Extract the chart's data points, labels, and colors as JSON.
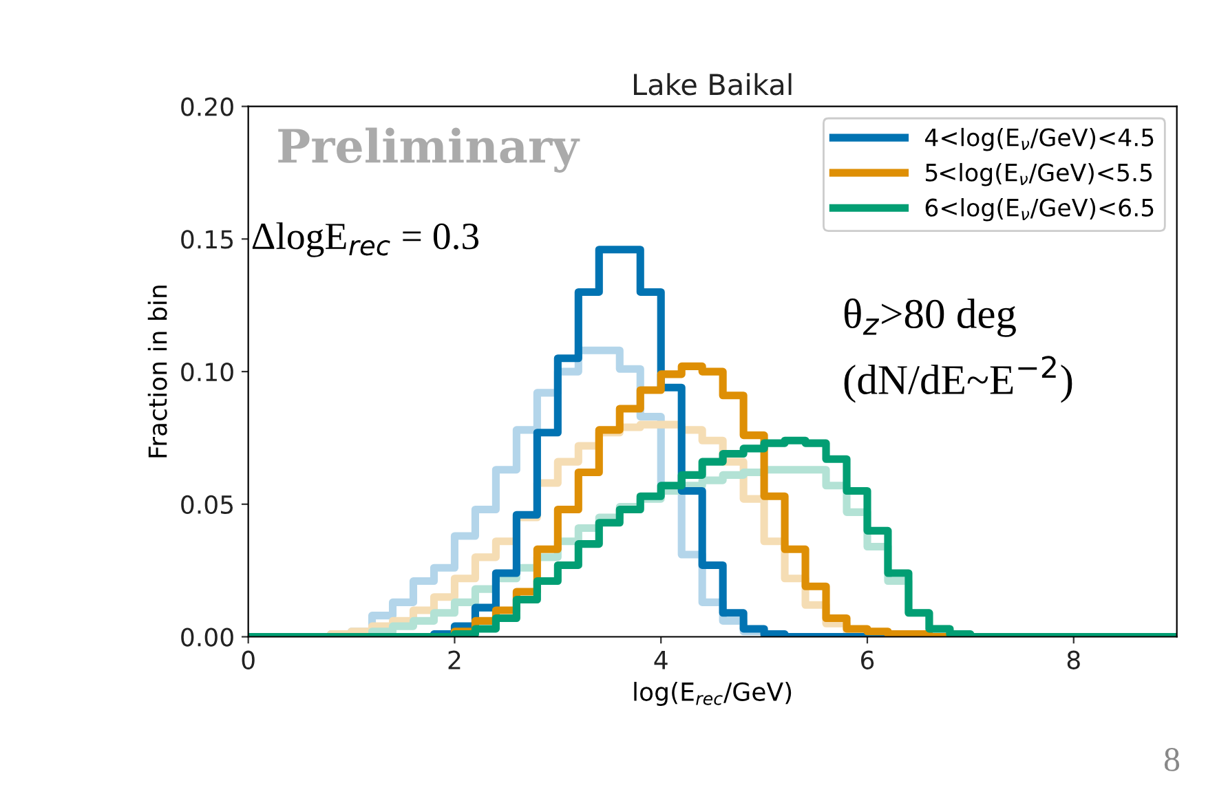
{
  "chart_data": {
    "type": "histogram",
    "title": "Lake Baikal",
    "xlabel": "log(E$_{rec}$/GeV)",
    "ylabel": "Fraction in bin",
    "bins": [
      0,
      0.2,
      0.4,
      0.6,
      0.8,
      1.0,
      1.2,
      1.4,
      1.6,
      1.8,
      2.0,
      2.2,
      2.4,
      2.6,
      2.8,
      3.0,
      3.2,
      3.4,
      3.6,
      3.8,
      4.0,
      4.2,
      4.4,
      4.6,
      4.8,
      5.0,
      5.2,
      5.4,
      5.6,
      5.8,
      6.0,
      6.2,
      6.4,
      6.6,
      6.8,
      7.0,
      7.2,
      7.4,
      7.6,
      7.8,
      8.0,
      8.2,
      8.4,
      8.6,
      8.8,
      9.0
    ],
    "series": [
      {
        "color": "#b3d5ea",
        "values": [
          0,
          0,
          0,
          0,
          0.001,
          0.002,
          0.008,
          0.013,
          0.021,
          0.026,
          0.038,
          0.048,
          0.063,
          0.078,
          0.092,
          0.1,
          0.108,
          0.108,
          0.101,
          0.083,
          0.055,
          0.031,
          0.013,
          0.006,
          0.002,
          0,
          0,
          0,
          0,
          0,
          0,
          0,
          0,
          0,
          0,
          0,
          0,
          0,
          0,
          0,
          0,
          0,
          0,
          0,
          0
        ]
      },
      {
        "color": "#f5ddb4",
        "values": [
          0,
          0,
          0,
          0,
          0.001,
          0.002,
          0.004,
          0.006,
          0.01,
          0.015,
          0.022,
          0.03,
          0.036,
          0.045,
          0.058,
          0.066,
          0.072,
          0.077,
          0.079,
          0.08,
          0.08,
          0.078,
          0.074,
          0.066,
          0.052,
          0.036,
          0.022,
          0.012,
          0.005,
          0.002,
          0,
          0,
          0,
          0,
          0,
          0,
          0,
          0,
          0,
          0,
          0,
          0,
          0,
          0,
          0
        ]
      },
      {
        "color": "#b3e2d5",
        "values": [
          0,
          0,
          0,
          0,
          0,
          0,
          0.002,
          0.004,
          0.006,
          0.009,
          0.013,
          0.018,
          0.022,
          0.026,
          0.03,
          0.036,
          0.041,
          0.045,
          0.049,
          0.052,
          0.055,
          0.057,
          0.059,
          0.061,
          0.062,
          0.063,
          0.063,
          0.063,
          0.057,
          0.047,
          0.034,
          0.021,
          0.009,
          0.003,
          0,
          0,
          0,
          0,
          0,
          0,
          0,
          0,
          0,
          0,
          0
        ]
      },
      {
        "name": "4<log(E$_{ν}$/GeV)<4.5",
        "color": "#0173b2",
        "values": [
          0,
          0,
          0,
          0,
          0,
          0,
          0,
          0,
          0,
          0.001,
          0.004,
          0.011,
          0.024,
          0.046,
          0.077,
          0.105,
          0.13,
          0.146,
          0.146,
          0.13,
          0.094,
          0.055,
          0.027,
          0.009,
          0.003,
          0.001,
          0,
          0,
          0,
          0,
          0,
          0,
          0,
          0,
          0,
          0,
          0,
          0,
          0,
          0,
          0,
          0,
          0,
          0,
          0
        ]
      },
      {
        "name": "5<log(E$_{ν}$/GeV)<5.5",
        "color": "#de8f05",
        "values": [
          0,
          0,
          0,
          0,
          0,
          0,
          0,
          0,
          0,
          0,
          0.002,
          0.006,
          0.01,
          0.017,
          0.033,
          0.048,
          0.062,
          0.078,
          0.086,
          0.093,
          0.099,
          0.102,
          0.1,
          0.091,
          0.076,
          0.053,
          0.033,
          0.019,
          0.007,
          0.003,
          0.002,
          0.001,
          0.001,
          0,
          0,
          0,
          0,
          0,
          0,
          0,
          0,
          0,
          0,
          0,
          0
        ]
      },
      {
        "name": "6<log(E$_{ν}$/GeV)<6.5",
        "color": "#029e73",
        "values": [
          0,
          0,
          0,
          0,
          0,
          0,
          0,
          0,
          0,
          0,
          0.001,
          0.003,
          0.007,
          0.014,
          0.021,
          0.027,
          0.035,
          0.043,
          0.048,
          0.053,
          0.057,
          0.061,
          0.066,
          0.069,
          0.071,
          0.073,
          0.074,
          0.073,
          0.067,
          0.055,
          0.04,
          0.024,
          0.009,
          0.003,
          0.001,
          0,
          0,
          0,
          0,
          0,
          0,
          0,
          0,
          0,
          0
        ]
      }
    ],
    "xlim": [
      0,
      9
    ],
    "xticks": [
      0,
      2,
      4,
      6,
      8
    ],
    "ylim": [
      0,
      0.2
    ],
    "yticks": [
      {
        "value": 0,
        "label": "0.00"
      },
      {
        "value": 0.05,
        "label": "0.05"
      },
      {
        "value": 0.1,
        "label": "0.10"
      },
      {
        "value": 0.15,
        "label": "0.15"
      },
      {
        "value": 0.2,
        "label": "0.20"
      }
    ],
    "grid": false,
    "legend": "top right",
    "annotations": [
      "Preliminary",
      "ΔlogE$_{rec}$ = 0.3",
      "θ$_{z}$>80 deg",
      "(dN/dE~E$^{−2}$)",
      "8"
    ]
  }
}
